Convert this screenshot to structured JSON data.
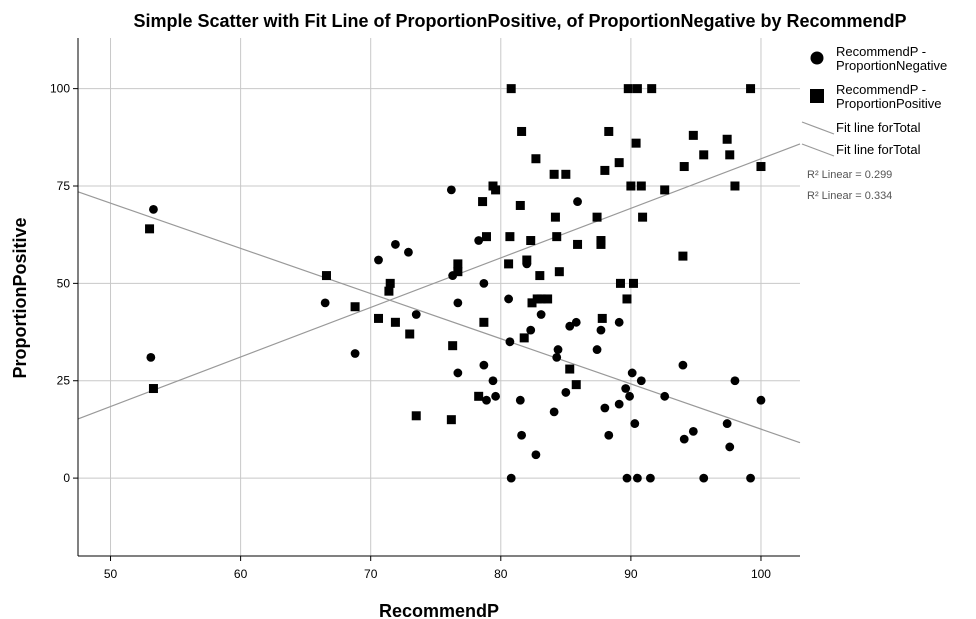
{
  "chart_data": {
    "type": "scatter",
    "title": "Simple Scatter with Fit Line of ProportionPositive,  of ProportionNegative by RecommendP",
    "xlabel": "RecommendP",
    "ylabel": "ProportionPositive",
    "xlim": [
      47.5,
      103
    ],
    "ylim": [
      -20,
      113
    ],
    "xticks": [
      "50",
      "60",
      "70",
      "80",
      "90",
      "100"
    ],
    "yticks": [
      "0",
      "25",
      "50",
      "75",
      "100"
    ],
    "grid": true,
    "legend_position": "right",
    "series": [
      {
        "name": "RecommendP - ProportionNegative",
        "marker": "circle",
        "color": "#000000",
        "points": [
          [
            53.1,
            31
          ],
          [
            53.3,
            69
          ],
          [
            66.5,
            45
          ],
          [
            68.8,
            32
          ],
          [
            70.6,
            56
          ],
          [
            71.9,
            60
          ],
          [
            72.9,
            58
          ],
          [
            73.5,
            42
          ],
          [
            76.2,
            74
          ],
          [
            76.3,
            52
          ],
          [
            76.7,
            45
          ],
          [
            76.7,
            27
          ],
          [
            78.3,
            61
          ],
          [
            78.7,
            50
          ],
          [
            78.7,
            29
          ],
          [
            78.9,
            20
          ],
          [
            79.4,
            25
          ],
          [
            79.6,
            21
          ],
          [
            80.6,
            46
          ],
          [
            80.7,
            35
          ],
          [
            80.8,
            0
          ],
          [
            81.5,
            20
          ],
          [
            81.6,
            11
          ],
          [
            82.0,
            55
          ],
          [
            82.3,
            38
          ],
          [
            82.7,
            6
          ],
          [
            83.1,
            42
          ],
          [
            84.1,
            17
          ],
          [
            84.3,
            31
          ],
          [
            84.4,
            33
          ],
          [
            85.0,
            22
          ],
          [
            85.3,
            39
          ],
          [
            85.8,
            40
          ],
          [
            85.9,
            71
          ],
          [
            87.4,
            33
          ],
          [
            87.7,
            38
          ],
          [
            88.0,
            18
          ],
          [
            88.3,
            11
          ],
          [
            89.1,
            19
          ],
          [
            89.1,
            40
          ],
          [
            89.6,
            23
          ],
          [
            89.7,
            0
          ],
          [
            89.9,
            21
          ],
          [
            90.1,
            27
          ],
          [
            90.3,
            14
          ],
          [
            90.5,
            0
          ],
          [
            90.8,
            25
          ],
          [
            91.5,
            0
          ],
          [
            92.6,
            21
          ],
          [
            94.0,
            29
          ],
          [
            94.1,
            10
          ],
          [
            94.8,
            12
          ],
          [
            95.6,
            0
          ],
          [
            97.4,
            14
          ],
          [
            97.6,
            8
          ],
          [
            98.0,
            25
          ],
          [
            99.2,
            0
          ],
          [
            100.0,
            20
          ]
        ]
      },
      {
        "name": "RecommendP - ProportionPositive",
        "marker": "square",
        "color": "#000000",
        "points": [
          [
            53.0,
            64
          ],
          [
            53.3,
            23
          ],
          [
            66.6,
            52
          ],
          [
            68.8,
            44
          ],
          [
            70.6,
            41
          ],
          [
            71.4,
            48
          ],
          [
            71.5,
            50
          ],
          [
            71.9,
            40
          ],
          [
            73.0,
            37
          ],
          [
            73.5,
            16
          ],
          [
            76.2,
            15
          ],
          [
            76.3,
            34
          ],
          [
            76.7,
            55
          ],
          [
            76.7,
            53
          ],
          [
            78.3,
            21
          ],
          [
            78.6,
            71
          ],
          [
            78.7,
            40
          ],
          [
            78.9,
            62
          ],
          [
            79.4,
            75
          ],
          [
            79.6,
            74
          ],
          [
            80.6,
            55
          ],
          [
            80.7,
            62
          ],
          [
            80.8,
            100
          ],
          [
            81.5,
            70
          ],
          [
            81.6,
            89
          ],
          [
            81.8,
            36
          ],
          [
            82.0,
            56
          ],
          [
            82.3,
            61
          ],
          [
            82.4,
            45
          ],
          [
            82.7,
            82
          ],
          [
            82.8,
            46
          ],
          [
            83.0,
            52
          ],
          [
            83.1,
            46
          ],
          [
            83.6,
            46
          ],
          [
            84.1,
            78
          ],
          [
            84.2,
            67
          ],
          [
            84.3,
            62
          ],
          [
            84.5,
            53
          ],
          [
            85.0,
            78
          ],
          [
            85.3,
            28
          ],
          [
            85.8,
            24
          ],
          [
            85.9,
            60
          ],
          [
            87.4,
            67
          ],
          [
            87.7,
            61
          ],
          [
            87.7,
            60
          ],
          [
            87.8,
            41
          ],
          [
            88.0,
            79
          ],
          [
            88.3,
            89
          ],
          [
            89.1,
            81
          ],
          [
            89.2,
            50
          ],
          [
            89.7,
            46
          ],
          [
            89.8,
            100
          ],
          [
            90.0,
            75
          ],
          [
            90.2,
            50
          ],
          [
            90.4,
            86
          ],
          [
            90.5,
            100
          ],
          [
            90.8,
            75
          ],
          [
            90.9,
            67
          ],
          [
            91.6,
            100
          ],
          [
            92.6,
            74
          ],
          [
            94.0,
            57
          ],
          [
            94.1,
            80
          ],
          [
            94.8,
            88
          ],
          [
            95.6,
            83
          ],
          [
            97.4,
            87
          ],
          [
            97.6,
            83
          ],
          [
            98.0,
            75
          ],
          [
            99.2,
            100
          ],
          [
            100.0,
            80
          ]
        ]
      }
    ],
    "fit_lines": [
      {
        "name": "Fit line forTotal",
        "r2_label": "R² Linear = 0.299",
        "x": [
          47.5,
          103
        ],
        "y": [
          73.5,
          9.1
        ],
        "color": "#999999"
      },
      {
        "name": "Fit line forTotal",
        "r2_label": "R² Linear = 0.334",
        "x": [
          47.5,
          103
        ],
        "y": [
          15.2,
          85.8
        ],
        "color": "#999999"
      }
    ],
    "legend": [
      {
        "label_lines": [
          "RecommendP -",
          "ProportionNegative"
        ],
        "marker": "circle"
      },
      {
        "label_lines": [
          "RecommendP -",
          "ProportionPositive"
        ],
        "marker": "square"
      },
      {
        "label_lines": [
          "Fit line forTotal"
        ],
        "marker": "line-down"
      },
      {
        "label_lines": [
          "Fit line forTotal"
        ],
        "marker": "line-down"
      }
    ],
    "r2_labels": [
      "R² Linear = 0.299",
      "R² Linear = 0.334"
    ]
  }
}
